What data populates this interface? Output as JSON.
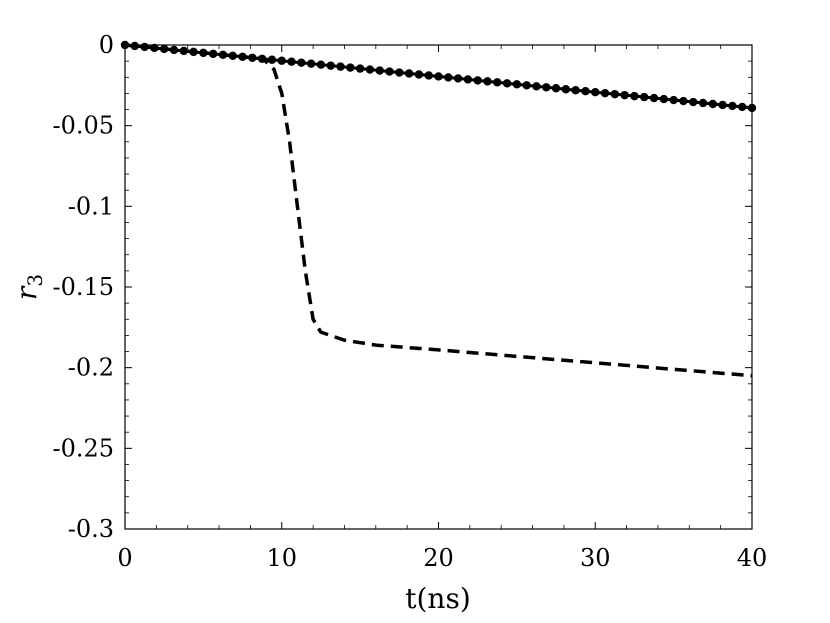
{
  "chart_data": {
    "type": "line",
    "xlabel": "t(ns)",
    "ylabel": "r3",
    "xlim": [
      0,
      40
    ],
    "ylim": [
      -0.3,
      0
    ],
    "xticks": [
      0,
      10,
      20,
      30,
      40
    ],
    "yticks": [
      0,
      -0.05,
      -0.1,
      -0.15,
      -0.2,
      -0.25,
      -0.3
    ],
    "xtick_labels": [
      "0",
      "10",
      "20",
      "30",
      "40"
    ],
    "ytick_labels": [
      "0",
      "-0.05",
      "-0.1",
      "-0.15",
      "-0.2",
      "-0.25",
      "-0.3"
    ],
    "grid": false,
    "box": true,
    "series": [
      {
        "style": "solid-with-dots",
        "color": "#000000",
        "x": [
          0,
          40
        ],
        "y": [
          0,
          -0.039
        ]
      },
      {
        "style": "dashed",
        "color": "#000000",
        "x": [
          0,
          8.8,
          9.5,
          10.0,
          10.5,
          11.0,
          11.5,
          12.0,
          12.5,
          14,
          16,
          20,
          25,
          30,
          35,
          40
        ],
        "y": [
          0,
          -0.0085,
          -0.015,
          -0.03,
          -0.06,
          -0.1,
          -0.14,
          -0.17,
          -0.178,
          -0.183,
          -0.186,
          -0.189,
          -0.193,
          -0.197,
          -0.201,
          -0.205
        ]
      }
    ]
  }
}
